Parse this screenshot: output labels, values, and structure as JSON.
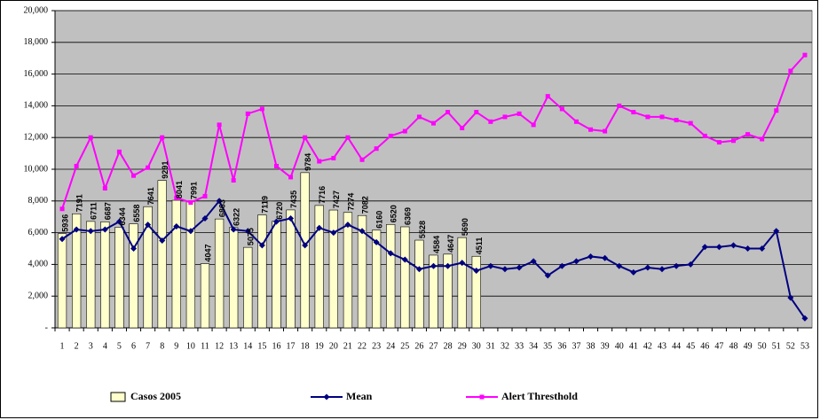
{
  "chart_data": {
    "type": "bar_line",
    "categories": [
      "1",
      "2",
      "3",
      "4",
      "5",
      "6",
      "7",
      "8",
      "9",
      "10",
      "11",
      "12",
      "13",
      "14",
      "15",
      "16",
      "17",
      "18",
      "19",
      "20",
      "21",
      "22",
      "23",
      "24",
      "25",
      "26",
      "27",
      "28",
      "29",
      "30",
      "31",
      "32",
      "33",
      "34",
      "35",
      "36",
      "37",
      "38",
      "39",
      "40",
      "41",
      "42",
      "43",
      "44",
      "45",
      "46",
      "47",
      "48",
      "49",
      "50",
      "51",
      "52",
      "53"
    ],
    "series": [
      {
        "name": "Casos 2005",
        "kind": "bar",
        "color": "#ffffcc",
        "values": [
          5936,
          7191,
          6711,
          6687,
          6344,
          6558,
          7641,
          9291,
          8041,
          7991,
          4047,
          6863,
          6322,
          5075,
          7119,
          6720,
          7435,
          9784,
          7716,
          7427,
          7274,
          7082,
          6160,
          6520,
          6369,
          5528,
          4584,
          4647,
          5690,
          4511,
          null,
          null,
          null,
          null,
          null,
          null,
          null,
          null,
          null,
          null,
          null,
          null,
          null,
          null,
          null,
          null,
          null,
          null,
          null,
          null,
          null,
          null,
          null
        ]
      },
      {
        "name": "Mean",
        "kind": "line",
        "marker": "diamond",
        "color": "#000080",
        "values": [
          5600,
          6200,
          6100,
          6200,
          6700,
          5000,
          6500,
          5500,
          6400,
          6100,
          6900,
          8000,
          6200,
          6100,
          5200,
          6700,
          6900,
          5200,
          6300,
          6000,
          6500,
          6100,
          5400,
          4700,
          4300,
          3700,
          3900,
          3900,
          4100,
          3600,
          3900,
          3700,
          3800,
          4200,
          3300,
          3900,
          4200,
          4500,
          4400,
          3900,
          3500,
          3800,
          3700,
          3900,
          4000,
          5100,
          5100,
          5200,
          5000,
          5000,
          6100,
          1900,
          600
        ]
      },
      {
        "name": "Alert Thresthold",
        "kind": "line",
        "marker": "square",
        "color": "#ff00ff",
        "values": [
          7500,
          10200,
          12000,
          8800,
          11100,
          9600,
          10100,
          12000,
          8200,
          7900,
          8300,
          12800,
          9300,
          13500,
          13800,
          10200,
          9500,
          12000,
          10500,
          10700,
          12000,
          10600,
          11300,
          12100,
          12400,
          13300,
          12900,
          13600,
          12600,
          13600,
          13000,
          13300,
          13500,
          12800,
          14600,
          13800,
          13000,
          12500,
          12400,
          14000,
          13600,
          13300,
          13300,
          13100,
          12900,
          12100,
          11700,
          11800,
          12200,
          11900,
          13700,
          16200,
          17200
        ]
      }
    ],
    "ylim": [
      0,
      20000
    ],
    "yticks": [
      {
        "value": 0,
        "label": "-"
      },
      {
        "value": 2000,
        "label": "2,000"
      },
      {
        "value": 4000,
        "label": "4,000"
      },
      {
        "value": 6000,
        "label": "6,000"
      },
      {
        "value": 8000,
        "label": "8,000"
      },
      {
        "value": 10000,
        "label": "10,000"
      },
      {
        "value": 12000,
        "label": "12,000"
      },
      {
        "value": 14000,
        "label": "14,000"
      },
      {
        "value": 16000,
        "label": "16,000"
      },
      {
        "value": 18000,
        "label": "18,000"
      },
      {
        "value": 20000,
        "label": "20,000"
      }
    ],
    "grid": true,
    "plot_background": "#c0c0c0",
    "legend": "bottom"
  }
}
